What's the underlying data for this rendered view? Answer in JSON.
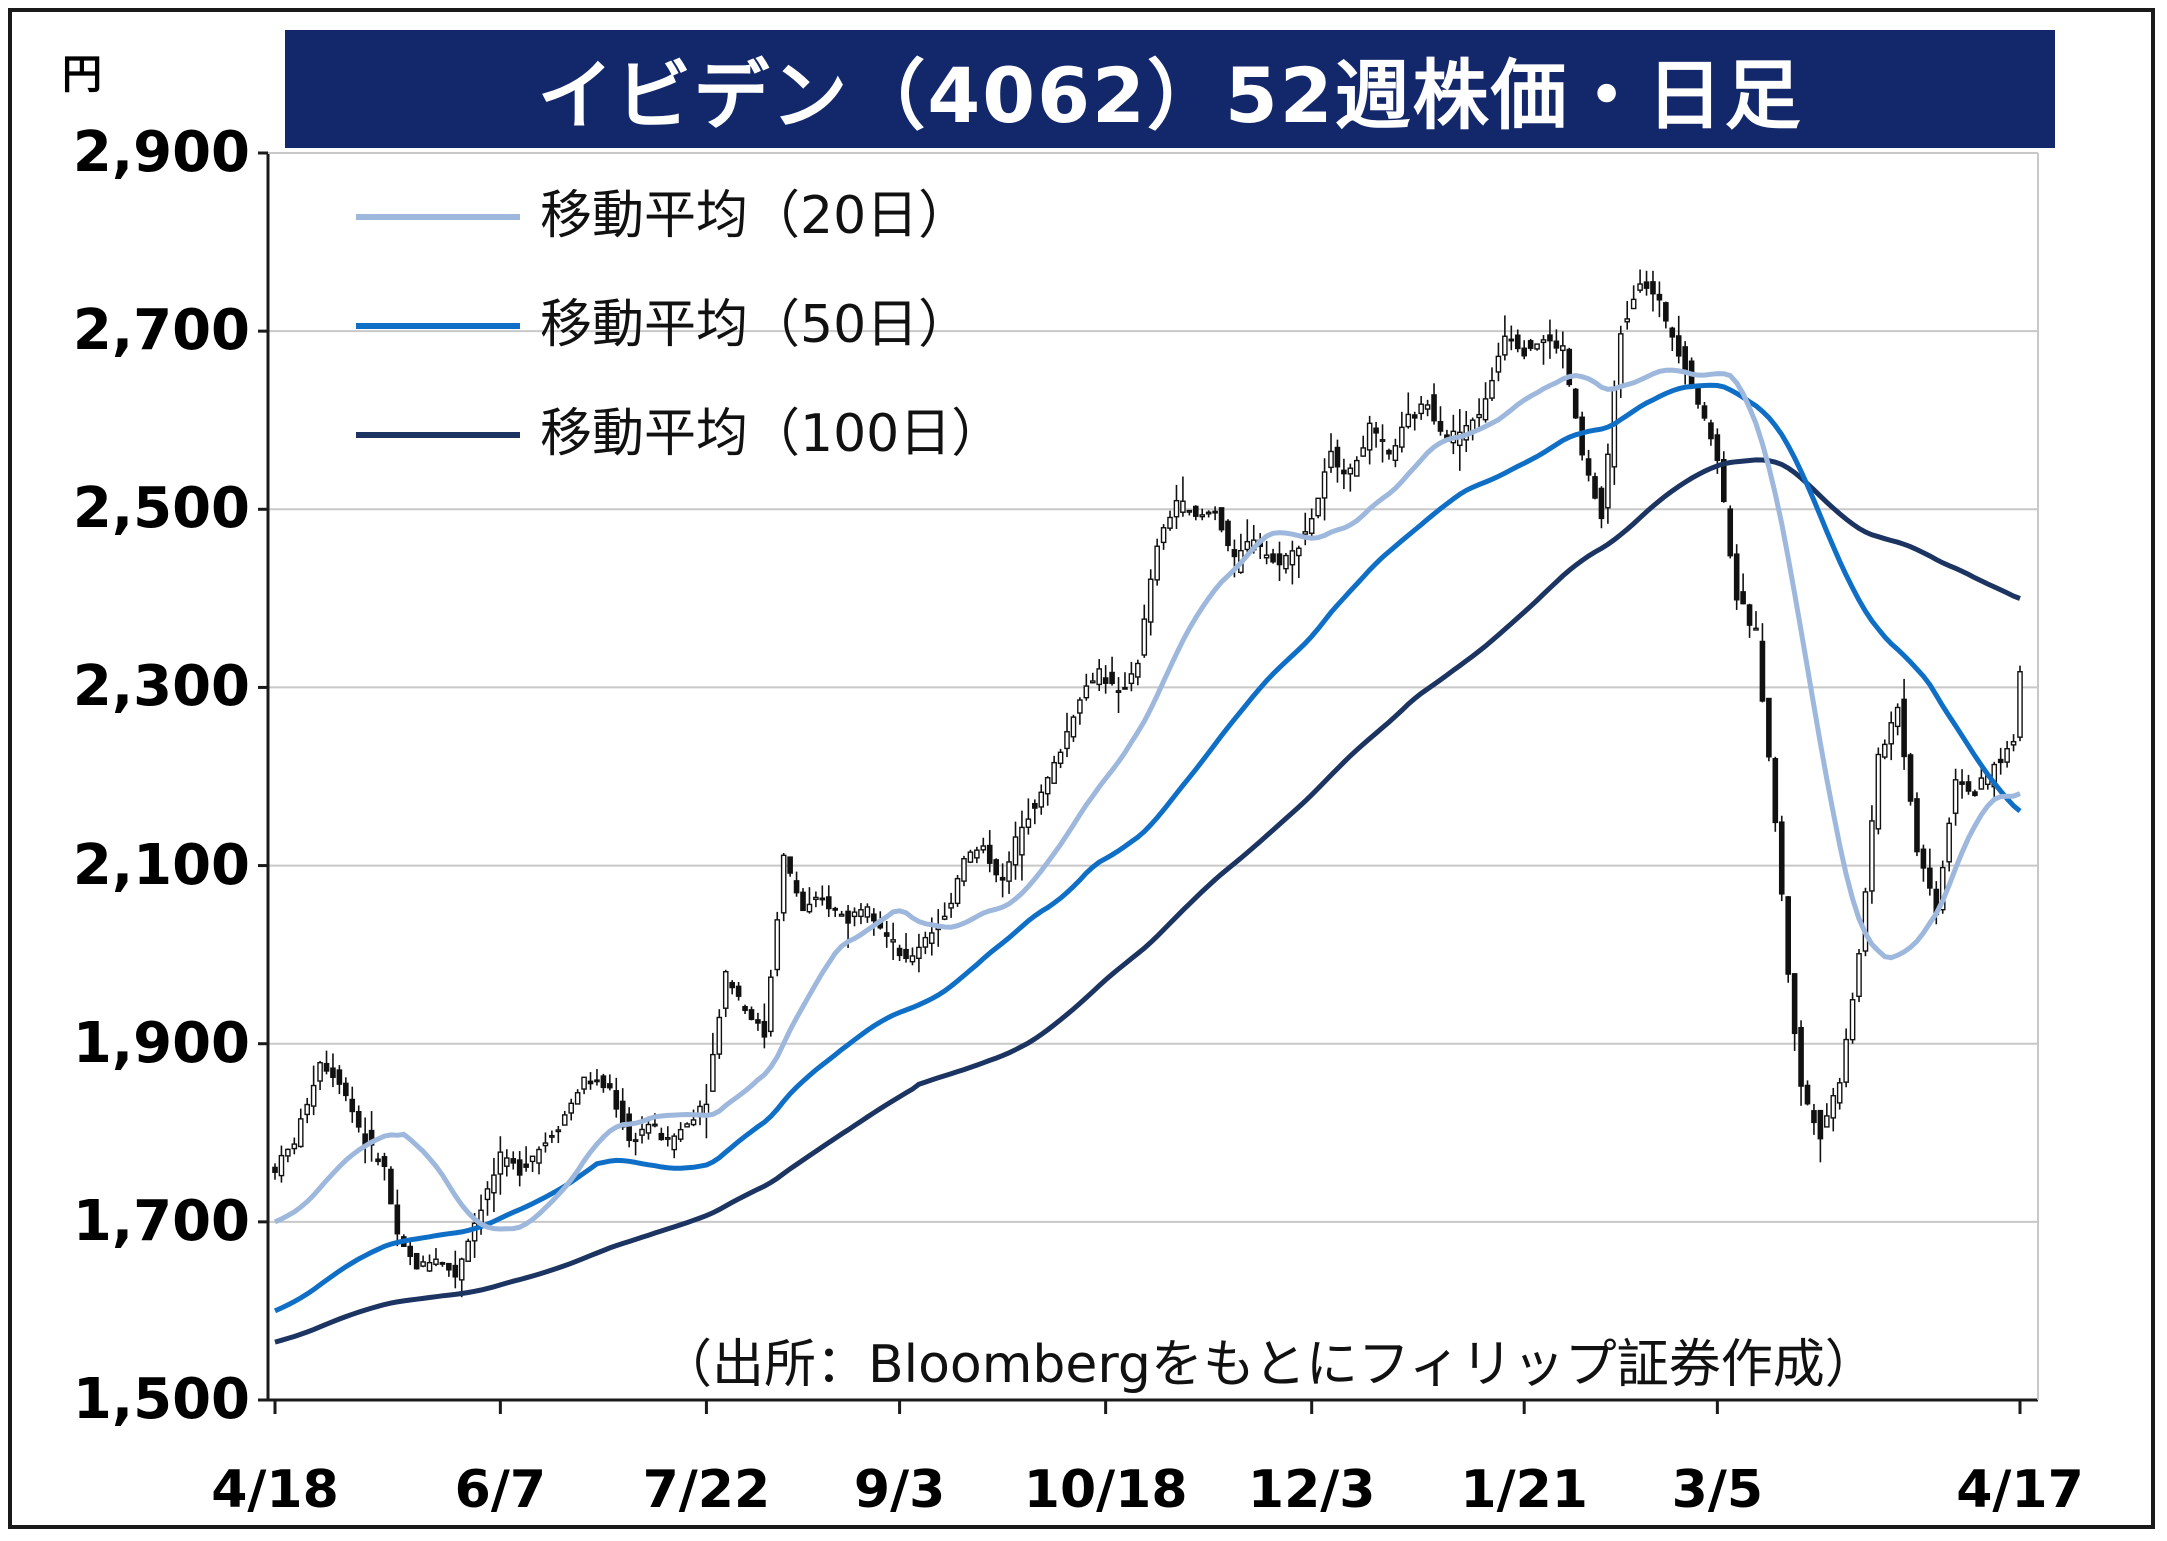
{
  "chart_data": {
    "type": "candlestick",
    "title": "イビデン（4062）52週株価・日足",
    "unit_label": "円",
    "ylim": [
      1500,
      2900
    ],
    "y_ticks": [
      "2,900",
      "2,700",
      "2,500",
      "2,300",
      "2,100",
      "1,900",
      "1,700",
      "1,500"
    ],
    "y_tick_values": [
      2900,
      2700,
      2500,
      2300,
      2100,
      1900,
      1700,
      1500
    ],
    "x_ticks": [
      "4/18",
      "6/7",
      "7/22",
      "9/3",
      "10/18",
      "12/3",
      "1/21",
      "3/5",
      "4/17"
    ],
    "grid": true,
    "legend": [
      {
        "name": "移動平均（20日）",
        "color": "#9db8dc"
      },
      {
        "name": "移動平均（50日）",
        "color": "#0f6fc6"
      },
      {
        "name": "移動平均（100日）",
        "color": "#1b3461"
      }
    ],
    "source": "（出所：Bloombergをもとにフィリップ証券作成）",
    "price_anchors": [
      [
        0,
        1760
      ],
      [
        3,
        1790
      ],
      [
        7,
        1880
      ],
      [
        10,
        1860
      ],
      [
        14,
        1790
      ],
      [
        17,
        1760
      ],
      [
        19,
        1680
      ],
      [
        22,
        1650
      ],
      [
        25,
        1660
      ],
      [
        28,
        1640
      ],
      [
        31,
        1700
      ],
      [
        35,
        1770
      ],
      [
        38,
        1760
      ],
      [
        42,
        1790
      ],
      [
        45,
        1820
      ],
      [
        48,
        1860
      ],
      [
        52,
        1850
      ],
      [
        55,
        1790
      ],
      [
        58,
        1810
      ],
      [
        61,
        1790
      ],
      [
        64,
        1810
      ],
      [
        67,
        1840
      ],
      [
        70,
        1980
      ],
      [
        73,
        1940
      ],
      [
        76,
        1910
      ],
      [
        79,
        2110
      ],
      [
        82,
        2050
      ],
      [
        85,
        2060
      ],
      [
        89,
        2040
      ],
      [
        92,
        2060
      ],
      [
        95,
        2020
      ],
      [
        98,
        1990
      ],
      [
        101,
        2020
      ],
      [
        104,
        2040
      ],
      [
        107,
        2110
      ],
      [
        110,
        2120
      ],
      [
        113,
        2080
      ],
      [
        116,
        2150
      ],
      [
        119,
        2180
      ],
      [
        122,
        2230
      ],
      [
        125,
        2290
      ],
      [
        128,
        2320
      ],
      [
        131,
        2290
      ],
      [
        134,
        2330
      ],
      [
        137,
        2460
      ],
      [
        140,
        2510
      ],
      [
        143,
        2490
      ],
      [
        146,
        2500
      ],
      [
        149,
        2440
      ],
      [
        152,
        2470
      ],
      [
        155,
        2440
      ],
      [
        158,
        2450
      ],
      [
        161,
        2490
      ],
      [
        164,
        2560
      ],
      [
        167,
        2540
      ],
      [
        170,
        2590
      ],
      [
        173,
        2560
      ],
      [
        176,
        2600
      ],
      [
        179,
        2620
      ],
      [
        182,
        2580
      ],
      [
        185,
        2590
      ],
      [
        188,
        2620
      ],
      [
        191,
        2700
      ],
      [
        194,
        2680
      ],
      [
        197,
        2690
      ],
      [
        200,
        2680
      ],
      [
        203,
        2560
      ],
      [
        206,
        2490
      ],
      [
        209,
        2700
      ],
      [
        212,
        2760
      ],
      [
        215,
        2730
      ],
      [
        218,
        2680
      ],
      [
        221,
        2620
      ],
      [
        224,
        2560
      ],
      [
        227,
        2400
      ],
      [
        230,
        2360
      ],
      [
        233,
        2150
      ],
      [
        235,
        1980
      ],
      [
        237,
        1850
      ],
      [
        240,
        1800
      ],
      [
        243,
        1860
      ],
      [
        246,
        2000
      ],
      [
        249,
        2220
      ],
      [
        252,
        2280
      ],
      [
        255,
        2120
      ],
      [
        258,
        2050
      ],
      [
        261,
        2200
      ],
      [
        264,
        2180
      ],
      [
        267,
        2210
      ],
      [
        270,
        2240
      ],
      [
        271,
        2320
      ]
    ]
  }
}
